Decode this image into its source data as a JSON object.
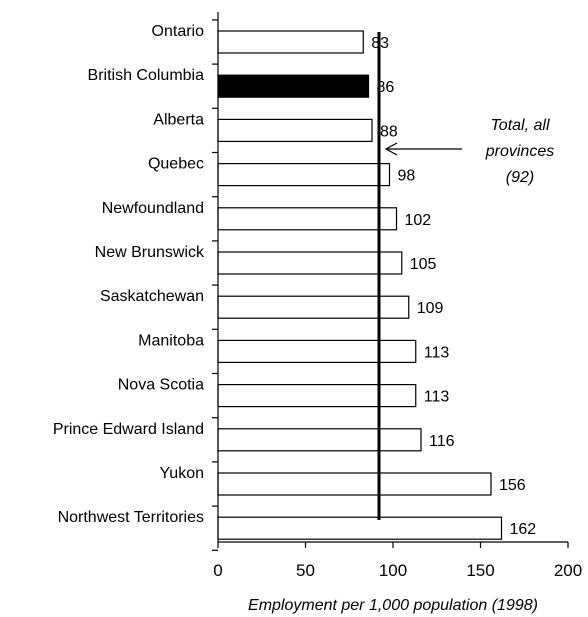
{
  "chart_data": {
    "type": "bar",
    "orientation": "horizontal",
    "categories": [
      "Ontario",
      "British Columbia",
      "Alberta",
      "Quebec",
      "Newfoundland",
      "New Brunswick",
      "Saskatchewan",
      "Manitoba",
      "Nova Scotia",
      "Prince Edward Island",
      "Yukon",
      "Northwest Territories"
    ],
    "values": [
      83,
      86,
      88,
      98,
      102,
      105,
      109,
      113,
      113,
      116,
      156,
      162
    ],
    "value_labels": [
      "83",
      "86",
      "88",
      "98",
      "102",
      "105",
      "109",
      "113",
      "113",
      "116",
      "156",
      "162"
    ],
    "highlighted_category": "British Columbia",
    "xlabel": "Employment per 1,000 population (1998)",
    "xlim": [
      0,
      200
    ],
    "xticks": [
      0,
      50,
      100,
      150,
      200
    ],
    "xtick_labels": [
      "0",
      "50",
      "100",
      "150",
      "200"
    ],
    "reference_line": {
      "value": 92,
      "annotation_lines": [
        "Total, all",
        "provinces",
        "(92)"
      ]
    },
    "grid": false,
    "legend": "none",
    "colors": {
      "bar_fill": "#ffffff",
      "bar_highlight": "#000000",
      "bar_stroke": "#000000",
      "reference_line": "#000000"
    }
  }
}
